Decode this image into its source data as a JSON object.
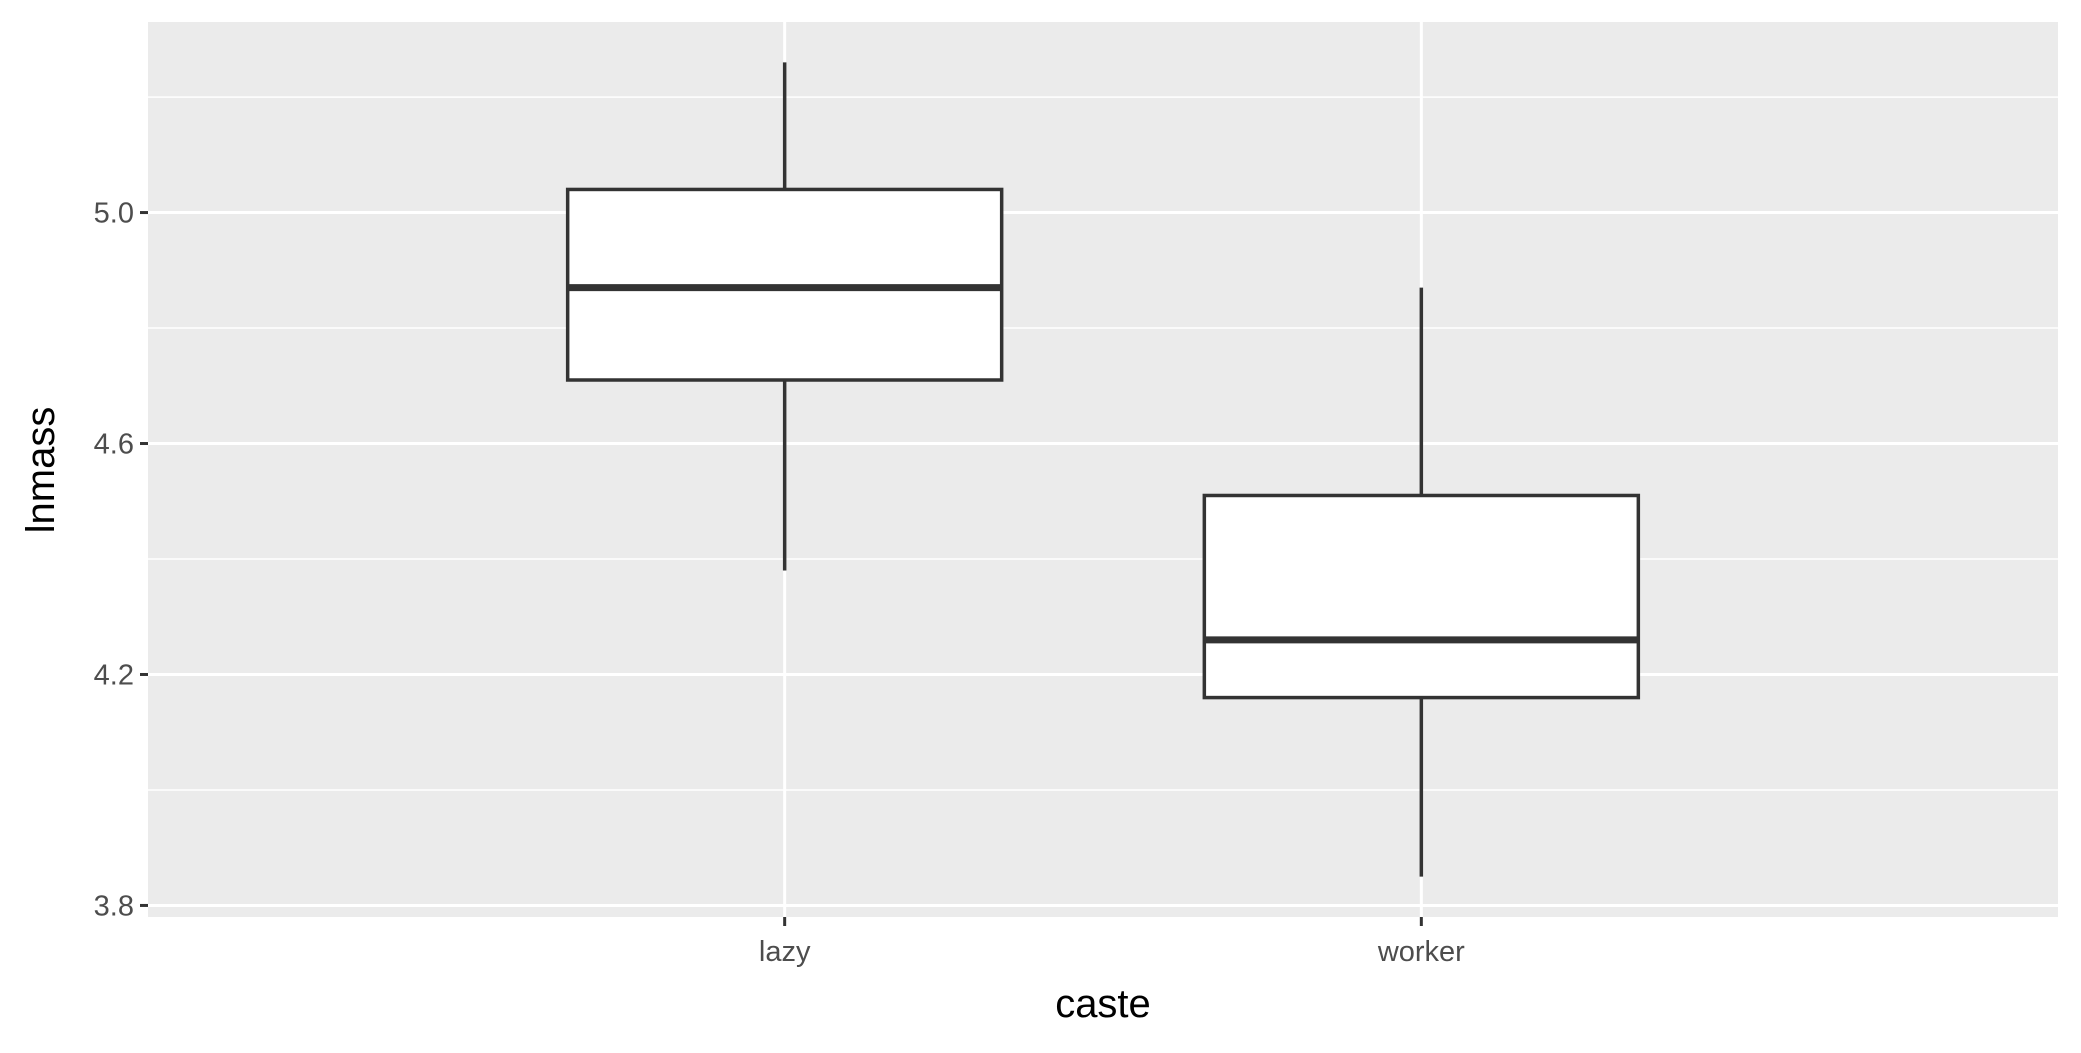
{
  "chart_data": {
    "type": "boxplot",
    "xlabel": "caste",
    "ylabel": "lnmass",
    "categories": [
      "lazy",
      "worker"
    ],
    "boxes": [
      {
        "category": "lazy",
        "whisker_low": 4.38,
        "q1": 4.71,
        "median": 4.87,
        "q3": 5.04,
        "whisker_high": 5.26
      },
      {
        "category": "worker",
        "whisker_low": 3.85,
        "q1": 4.16,
        "median": 4.26,
        "q3": 4.51,
        "whisker_high": 4.87
      }
    ],
    "ylim": [
      3.78,
      5.33
    ],
    "y_ticks": [
      3.8,
      4.2,
      4.6,
      5.0
    ],
    "y_tick_labels": [
      "3.8",
      "4.2",
      "4.6",
      "5.0"
    ],
    "grid": true,
    "colors": {
      "panel": "#ebebeb",
      "grid": "#ffffff",
      "box_fill": "#ffffff",
      "box_stroke": "#333333",
      "tick": "#333333"
    }
  }
}
